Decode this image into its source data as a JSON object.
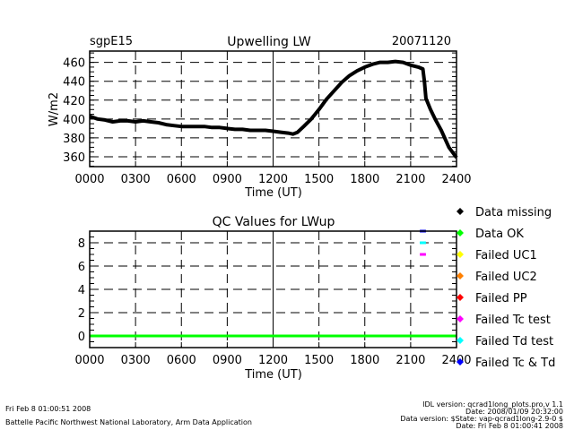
{
  "chart_data": [
    {
      "type": "line",
      "title": "Upwelling LW",
      "site_label": "sgpE15",
      "date_label": "20071120",
      "xlabel": "Time (UT)",
      "ylabel": "W/m2",
      "xlim": [
        0,
        24
      ],
      "ylim": [
        349.5,
        472
      ],
      "xticks": [
        "0000",
        "0300",
        "0600",
        "0900",
        "1200",
        "1500",
        "1800",
        "2100",
        "2400"
      ],
      "yticks": [
        360,
        380,
        400,
        420,
        440,
        460
      ],
      "grid": true,
      "series": [
        {
          "name": "LWup",
          "color": "#000000",
          "x": [
            0,
            0.5,
            1,
            1.5,
            2,
            2.5,
            3,
            3.5,
            4,
            4.5,
            5,
            5.5,
            6,
            6.5,
            7,
            7.5,
            8,
            8.5,
            9,
            9.5,
            10,
            10.5,
            11,
            11.5,
            12,
            12.5,
            13,
            13.3,
            13.6,
            14,
            14.5,
            15,
            15.5,
            16,
            16.5,
            17,
            17.5,
            18,
            18.5,
            19,
            19.5,
            20,
            20.5,
            21,
            21.5,
            21.8,
            21.9,
            22,
            22.3,
            22.6,
            23,
            23.5,
            24
          ],
          "y": [
            403,
            400,
            399,
            397,
            398,
            398,
            397,
            398,
            397,
            396,
            394,
            393,
            392,
            392,
            392,
            392,
            391,
            391,
            390,
            389,
            389,
            388,
            388,
            388,
            387,
            386,
            385,
            384,
            386,
            392,
            400,
            410,
            421,
            430,
            439,
            446,
            451,
            455,
            458,
            460,
            460,
            461,
            460,
            457,
            455,
            453,
            440,
            422,
            410,
            400,
            388,
            370,
            359
          ]
        }
      ]
    },
    {
      "type": "line",
      "title": "QC Values for LWup",
      "xlabel": "Time (UT)",
      "xlim": [
        0,
        24
      ],
      "ylim": [
        -1,
        9
      ],
      "xticks": [
        "0000",
        "0300",
        "0600",
        "0900",
        "1200",
        "1500",
        "1800",
        "2100",
        "2400"
      ],
      "yticks": [
        0,
        2,
        4,
        6,
        8
      ],
      "grid": true,
      "series": [
        {
          "name": "Data OK",
          "color": "#00ff00",
          "x": [
            0,
            24
          ],
          "y": [
            0,
            0
          ]
        },
        {
          "name": "Failed Tc & Td",
          "color": "#0000ff",
          "x": [
            21.6,
            22.0
          ],
          "y": [
            9,
            9
          ]
        },
        {
          "name": "Failed Td test",
          "color": "#00ffff",
          "x": [
            21.6,
            22.0
          ],
          "y": [
            8,
            8
          ]
        },
        {
          "name": "Failed Tc test",
          "color": "#ff00ff",
          "x": [
            21.6,
            22.0
          ],
          "y": [
            7,
            7
          ]
        }
      ],
      "legend": [
        {
          "label": "Data missing",
          "color": "#000000"
        },
        {
          "label": "Data OK",
          "color": "#00ff00"
        },
        {
          "label": "Failed UC1",
          "color": "#ffff00"
        },
        {
          "label": "Failed UC2",
          "color": "#ff8000"
        },
        {
          "label": "Failed PP",
          "color": "#ff0000"
        },
        {
          "label": "Failed Tc test",
          "color": "#ff00ff"
        },
        {
          "label": "Failed Td test",
          "color": "#00ffff"
        },
        {
          "label": "Failed Tc & Td",
          "color": "#0000ff"
        }
      ],
      "legend_position": "right"
    }
  ],
  "footer": {
    "timestamp": "Fri Feb  8 01:00:51 2008",
    "org": "Battelle Pacific Northwest National Laboratory, Arm Data Application",
    "idl_version": "IDL version: qcrad1long_plots.pro,v 1.1",
    "idl_date": "Date: 2008/01/09 20:32:00",
    "data_version": "Data version: $State: vap-qcrad1long-2.9-0 $",
    "data_date": "Date: Fri Feb  8 01:00:41 2008"
  }
}
